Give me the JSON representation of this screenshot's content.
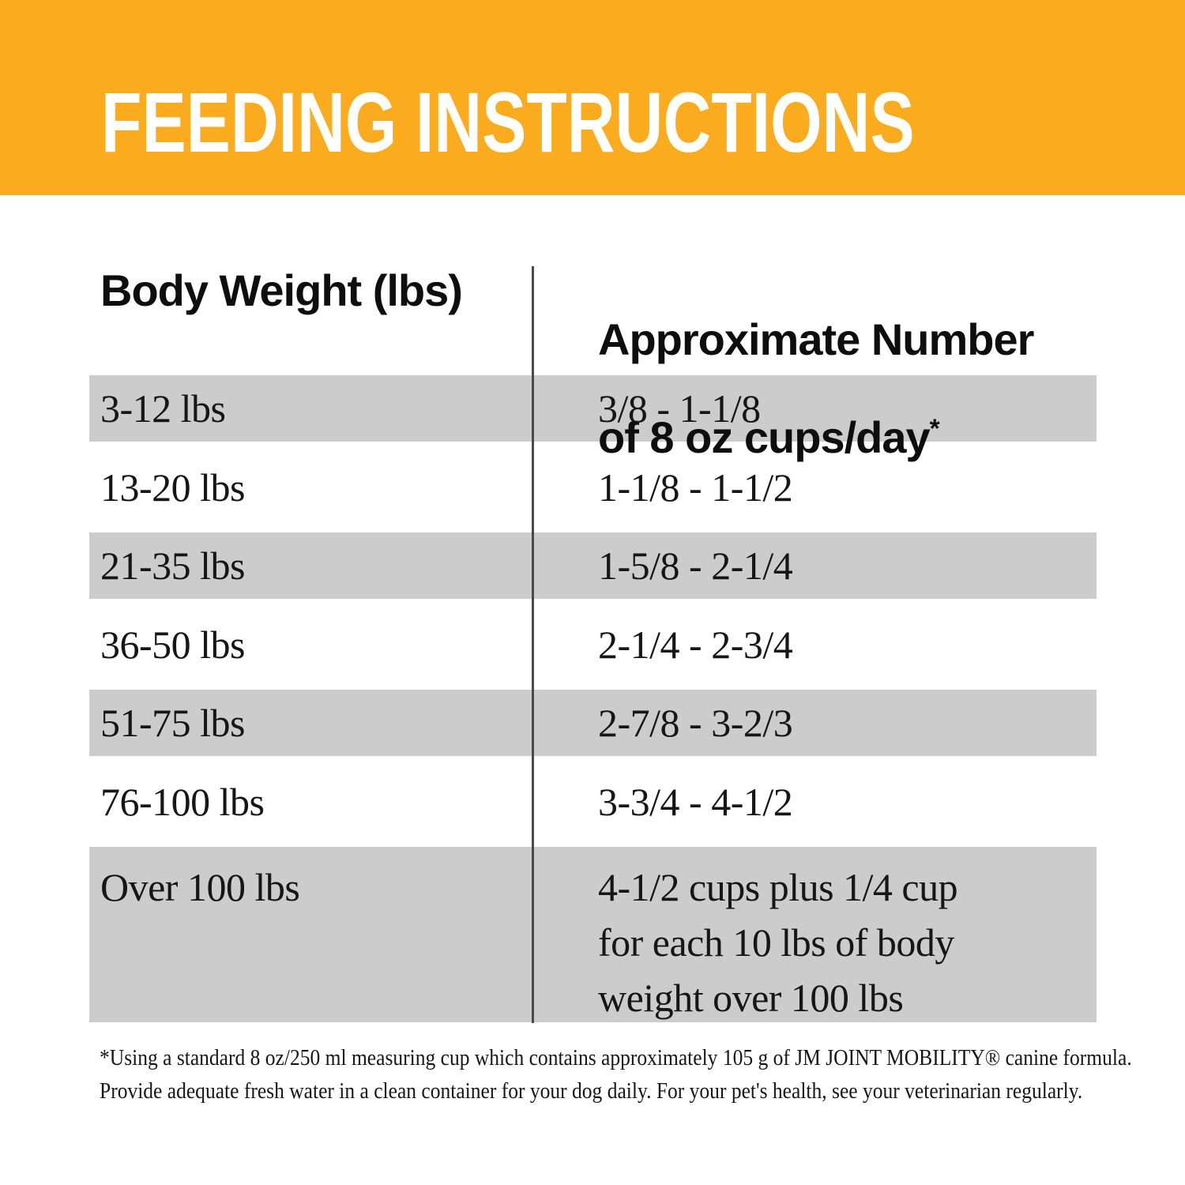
{
  "title": "FEEDING INSTRUCTIONS",
  "colors": {
    "header_bg": "#FBAB1E",
    "shaded_row": "#CCCCCC",
    "divider": "#4A4A4A",
    "title_text": "#FFFFFF",
    "heading_text": "#0E0E0E",
    "body_text": "#161616"
  },
  "table": {
    "col1_header": "Body Weight (lbs)",
    "col2_header_line1": "Approximate Number",
    "col2_header_line2": "of 8 oz cups/day",
    "col2_header_mark": "*",
    "rows": [
      {
        "weight": "3-12 lbs",
        "cups": "3/8 - 1-1/8"
      },
      {
        "weight": "13-20 lbs",
        "cups": "1-1/8 - 1-1/2"
      },
      {
        "weight": "21-35 lbs",
        "cups": "1-5/8 - 2-1/4"
      },
      {
        "weight": "36-50 lbs",
        "cups": "2-1/4 - 2-3/4"
      },
      {
        "weight": "51-75 lbs",
        "cups": "2-7/8 - 3-2/3"
      },
      {
        "weight": "76-100 lbs",
        "cups": "3-3/4 - 4-1/2"
      },
      {
        "weight": "Over 100 lbs",
        "cups": "4-1/2 cups plus 1/4 cup\nfor each 10 lbs of body\nweight over 100 lbs"
      }
    ]
  },
  "footnote": "*Using a standard 8 oz/250 ml measuring cup which contains approximately 105 g of JM JOINT MOBILITY® canine formula.\nProvide adequate fresh water in a clean container for your dog daily. For your pet's health, see your veterinarian regularly."
}
